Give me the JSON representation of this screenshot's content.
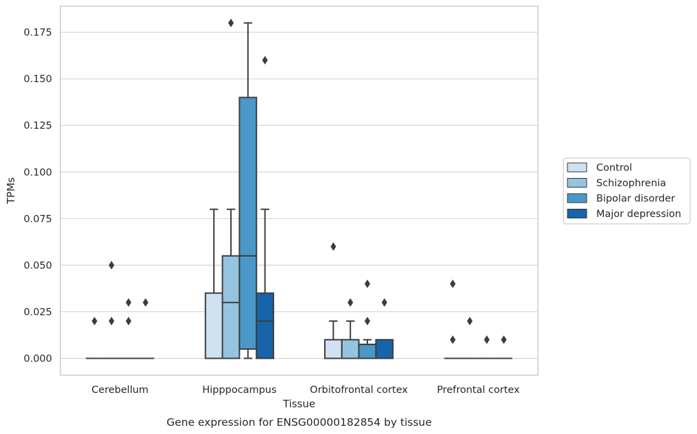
{
  "chart_data": {
    "type": "box",
    "title": "",
    "caption": "Gene expression for ENSG00000182854 by tissue",
    "xlabel": "Tissue",
    "ylabel": "TPMs",
    "ylim": [
      -0.009,
      0.189
    ],
    "yticks": [
      "0.000",
      "0.025",
      "0.050",
      "0.075",
      "0.100",
      "0.125",
      "0.150",
      "0.175"
    ],
    "grid": "horizontal",
    "legend_position": "right",
    "categories": [
      "Cerebellum",
      "Hipppocampus",
      "Orbitofrontal cortex",
      "Prefrontal cortex"
    ],
    "series": [
      {
        "name": "Control",
        "color": "#d0e1f2",
        "boxes": [
          {
            "q1": 0,
            "median": 0,
            "q3": 0,
            "whislo": 0,
            "whishi": 0,
            "fliers": [
              0.02
            ]
          },
          {
            "q1": 0,
            "median": 0,
            "q3": 0.035,
            "whislo": 0,
            "whishi": 0.08,
            "fliers": []
          },
          {
            "q1": 0,
            "median": 0,
            "q3": 0.01,
            "whislo": 0,
            "whishi": 0.02,
            "fliers": [
              0.06
            ]
          },
          {
            "q1": 0,
            "median": 0,
            "q3": 0,
            "whislo": 0,
            "whishi": 0,
            "fliers": [
              0.01,
              0.04
            ]
          }
        ]
      },
      {
        "name": "Schizophrenia",
        "color": "#94c4df",
        "boxes": [
          {
            "q1": 0,
            "median": 0,
            "q3": 0,
            "whislo": 0,
            "whishi": 0,
            "fliers": [
              0.02,
              0.05
            ]
          },
          {
            "q1": 0,
            "median": 0.03,
            "q3": 0.055,
            "whislo": 0,
            "whishi": 0.08,
            "fliers": [
              0.18
            ]
          },
          {
            "q1": 0,
            "median": 0,
            "q3": 0.01,
            "whislo": 0,
            "whishi": 0.02,
            "fliers": [
              0.03
            ]
          },
          {
            "q1": 0,
            "median": 0,
            "q3": 0,
            "whislo": 0,
            "whishi": 0,
            "fliers": [
              0.02
            ]
          }
        ]
      },
      {
        "name": "Bipolar disorder",
        "color": "#4a98c9",
        "boxes": [
          {
            "q1": 0,
            "median": 0,
            "q3": 0,
            "whislo": 0,
            "whishi": 0,
            "fliers": [
              0.02,
              0.03
            ]
          },
          {
            "q1": 0.005,
            "median": 0.055,
            "q3": 0.14,
            "whislo": 0,
            "whishi": 0.18,
            "fliers": []
          },
          {
            "q1": 0,
            "median": 0.0075,
            "q3": 0.0075,
            "whislo": 0,
            "whishi": 0.01,
            "fliers": [
              0.02,
              0.04
            ]
          },
          {
            "q1": 0,
            "median": 0,
            "q3": 0,
            "whislo": 0,
            "whishi": 0,
            "fliers": [
              0.01
            ]
          }
        ]
      },
      {
        "name": "Major depression",
        "color": "#1764ab",
        "boxes": [
          {
            "q1": 0,
            "median": 0,
            "q3": 0,
            "whislo": 0,
            "whishi": 0,
            "fliers": [
              0.03
            ]
          },
          {
            "q1": 0,
            "median": 0.02,
            "q3": 0.035,
            "whislo": 0,
            "whishi": 0.08,
            "fliers": [
              0.16
            ]
          },
          {
            "q1": 0,
            "median": 0,
            "q3": 0.01,
            "whislo": 0,
            "whishi": 0.01,
            "fliers": [
              0.03
            ]
          },
          {
            "q1": 0,
            "median": 0,
            "q3": 0,
            "whislo": 0,
            "whishi": 0,
            "fliers": [
              0.01
            ]
          }
        ]
      }
    ]
  }
}
